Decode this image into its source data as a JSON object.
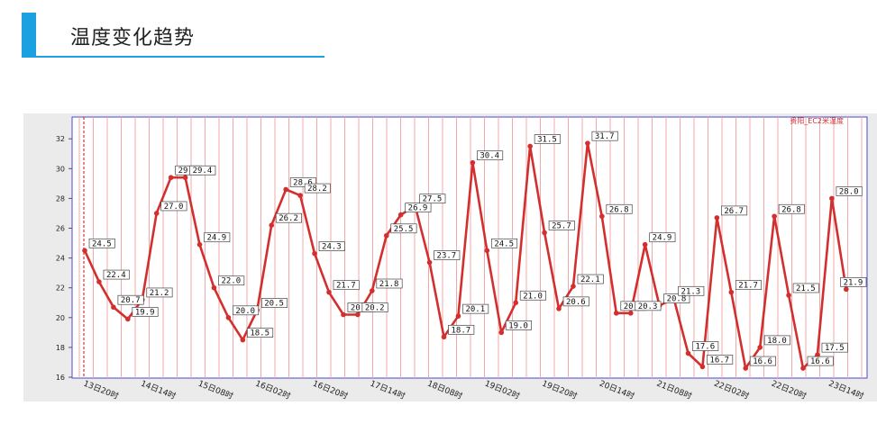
{
  "header": {
    "title": "温度变化趋势"
  },
  "chart_data": {
    "type": "line",
    "series": [
      {
        "name": "贵阳_EC2米温度",
        "color": "#d32f2f",
        "values": [
          24.5,
          22.4,
          20.7,
          19.9,
          21.2,
          27.0,
          29.4,
          29.4,
          24.9,
          22.0,
          20.0,
          18.5,
          20.5,
          26.2,
          28.6,
          28.2,
          24.3,
          21.7,
          20.2,
          20.2,
          21.8,
          25.5,
          26.9,
          27.5,
          23.7,
          18.7,
          20.1,
          30.4,
          24.5,
          19.0,
          21.0,
          31.5,
          25.7,
          20.6,
          22.1,
          31.7,
          26.8,
          20.3,
          20.3,
          24.9,
          20.8,
          21.3,
          17.6,
          16.7,
          26.7,
          21.7,
          16.6,
          18.0,
          26.8,
          21.5,
          16.6,
          17.5,
          28.0,
          21.9
        ],
        "labels": [
          "24.5",
          "22.4",
          "20.7",
          "19.9",
          "21.2",
          "27.0",
          "29.4",
          "29.4",
          "24.9",
          "22.0",
          "20.0",
          "18.5",
          "20.5",
          "26.2",
          "28.6",
          "28.2",
          "24.3",
          "21.7",
          "20.2",
          "20.2",
          "21.8",
          "25.5",
          "26.9",
          "27.5",
          "23.7",
          "18.7",
          "20.1",
          "30.4",
          "24.5",
          "19.0",
          "21.0",
          "31.5",
          "25.7",
          "20.6",
          "22.1",
          "31.7",
          "26.8",
          "20.3",
          "20.3",
          "24.9",
          "20.8",
          "21.3",
          "17.6",
          "16.7",
          "26.7",
          "21.7",
          "16.6",
          "18.0",
          "26.8",
          "21.5",
          "16.6",
          "17.5",
          "28.0",
          "21.9"
        ]
      }
    ],
    "x_tick_labels": [
      "13日20时",
      "14日14时",
      "15日08时",
      "16日02时",
      "16日20时",
      "17日14时",
      "18日08时",
      "19日02时",
      "19日20时",
      "20日14时",
      "21日08时",
      "22日02时",
      "22日20时",
      "23日14时"
    ],
    "ylim": [
      15.5,
      33
    ],
    "y_ticks": [
      16,
      18,
      20,
      22,
      24,
      26,
      28,
      30,
      32
    ],
    "grid": "vertical",
    "legend_position": "top-right"
  }
}
